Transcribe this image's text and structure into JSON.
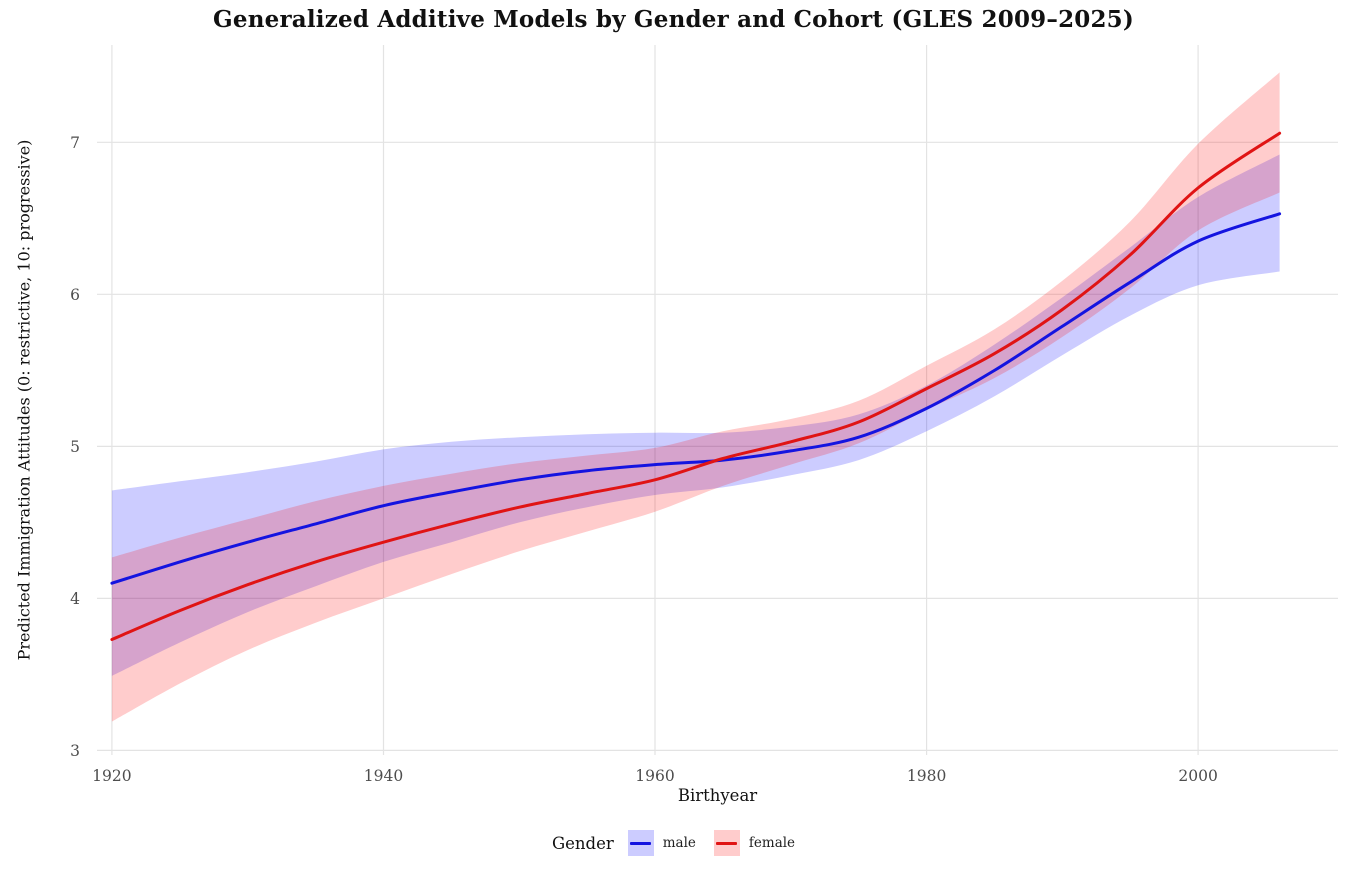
{
  "figure": {
    "background": "#ffffff"
  },
  "legend": {
    "title": "Gender",
    "position": "bottom",
    "items": [
      {
        "label": "male",
        "line_color": "#1414e0",
        "fill_color": "#ccccff"
      },
      {
        "label": "female",
        "line_color": "#e01414",
        "fill_color": "#ffcccc"
      }
    ]
  },
  "style": {
    "grid_color": "#e3e3e3",
    "tick_label_color": "#4d4d4d",
    "title_color": "#111111",
    "panel_background": "#ffffff",
    "ribbon_opacity": 0.2
  },
  "chart_data": {
    "type": "line",
    "title": "Generalized Additive Models by Gender and Cohort (GLES 2009–2025)",
    "xlabel": "Birthyear",
    "ylabel": "Predicted Immigration Attitudes (0: restrictive, 10: progressive)",
    "x_ticks": [
      1920,
      1940,
      1960,
      1980,
      2000
    ],
    "y_ticks": [
      3,
      4,
      5,
      6,
      7
    ],
    "xlim": [
      1918.9,
      2010.3
    ],
    "ylim": [
      2.97,
      7.64
    ],
    "grid": "major only, light gray, horizontal and vertical",
    "legend_position": "bottom",
    "x": [
      1920,
      1925,
      1930,
      1935,
      1940,
      1945,
      1950,
      1955,
      1960,
      1965,
      1970,
      1975,
      1980,
      1985,
      1990,
      1995,
      2000,
      2006
    ],
    "series": [
      {
        "name": "male",
        "line_color": "#1414e0",
        "ribbon_color": "#0000ff",
        "values": [
          4.1,
          4.24,
          4.37,
          4.49,
          4.61,
          4.7,
          4.78,
          4.84,
          4.88,
          4.91,
          4.97,
          5.06,
          5.25,
          5.5,
          5.79,
          6.08,
          6.35,
          6.53
        ],
        "lower": [
          3.49,
          3.71,
          3.91,
          4.08,
          4.24,
          4.37,
          4.5,
          4.6,
          4.68,
          4.73,
          4.81,
          4.91,
          5.1,
          5.33,
          5.6,
          5.86,
          6.06,
          6.15
        ],
        "upper": [
          4.71,
          4.77,
          4.83,
          4.9,
          4.98,
          5.03,
          5.06,
          5.08,
          5.09,
          5.09,
          5.13,
          5.21,
          5.4,
          5.67,
          5.98,
          6.31,
          6.64,
          6.92
        ]
      },
      {
        "name": "female",
        "line_color": "#e01414",
        "ribbon_color": "#ff0000",
        "values": [
          3.73,
          3.92,
          4.09,
          4.24,
          4.37,
          4.49,
          4.6,
          4.69,
          4.78,
          4.92,
          5.03,
          5.16,
          5.38,
          5.61,
          5.9,
          6.26,
          6.7,
          7.06
        ],
        "lower": [
          3.19,
          3.44,
          3.66,
          3.84,
          4.0,
          4.16,
          4.31,
          4.44,
          4.57,
          4.74,
          4.88,
          5.02,
          5.24,
          5.45,
          5.72,
          6.04,
          6.42,
          6.67
        ],
        "upper": [
          4.27,
          4.4,
          4.52,
          4.64,
          4.74,
          4.82,
          4.89,
          4.94,
          4.99,
          5.1,
          5.18,
          5.3,
          5.53,
          5.77,
          6.09,
          6.48,
          6.99,
          7.46
        ]
      }
    ]
  }
}
